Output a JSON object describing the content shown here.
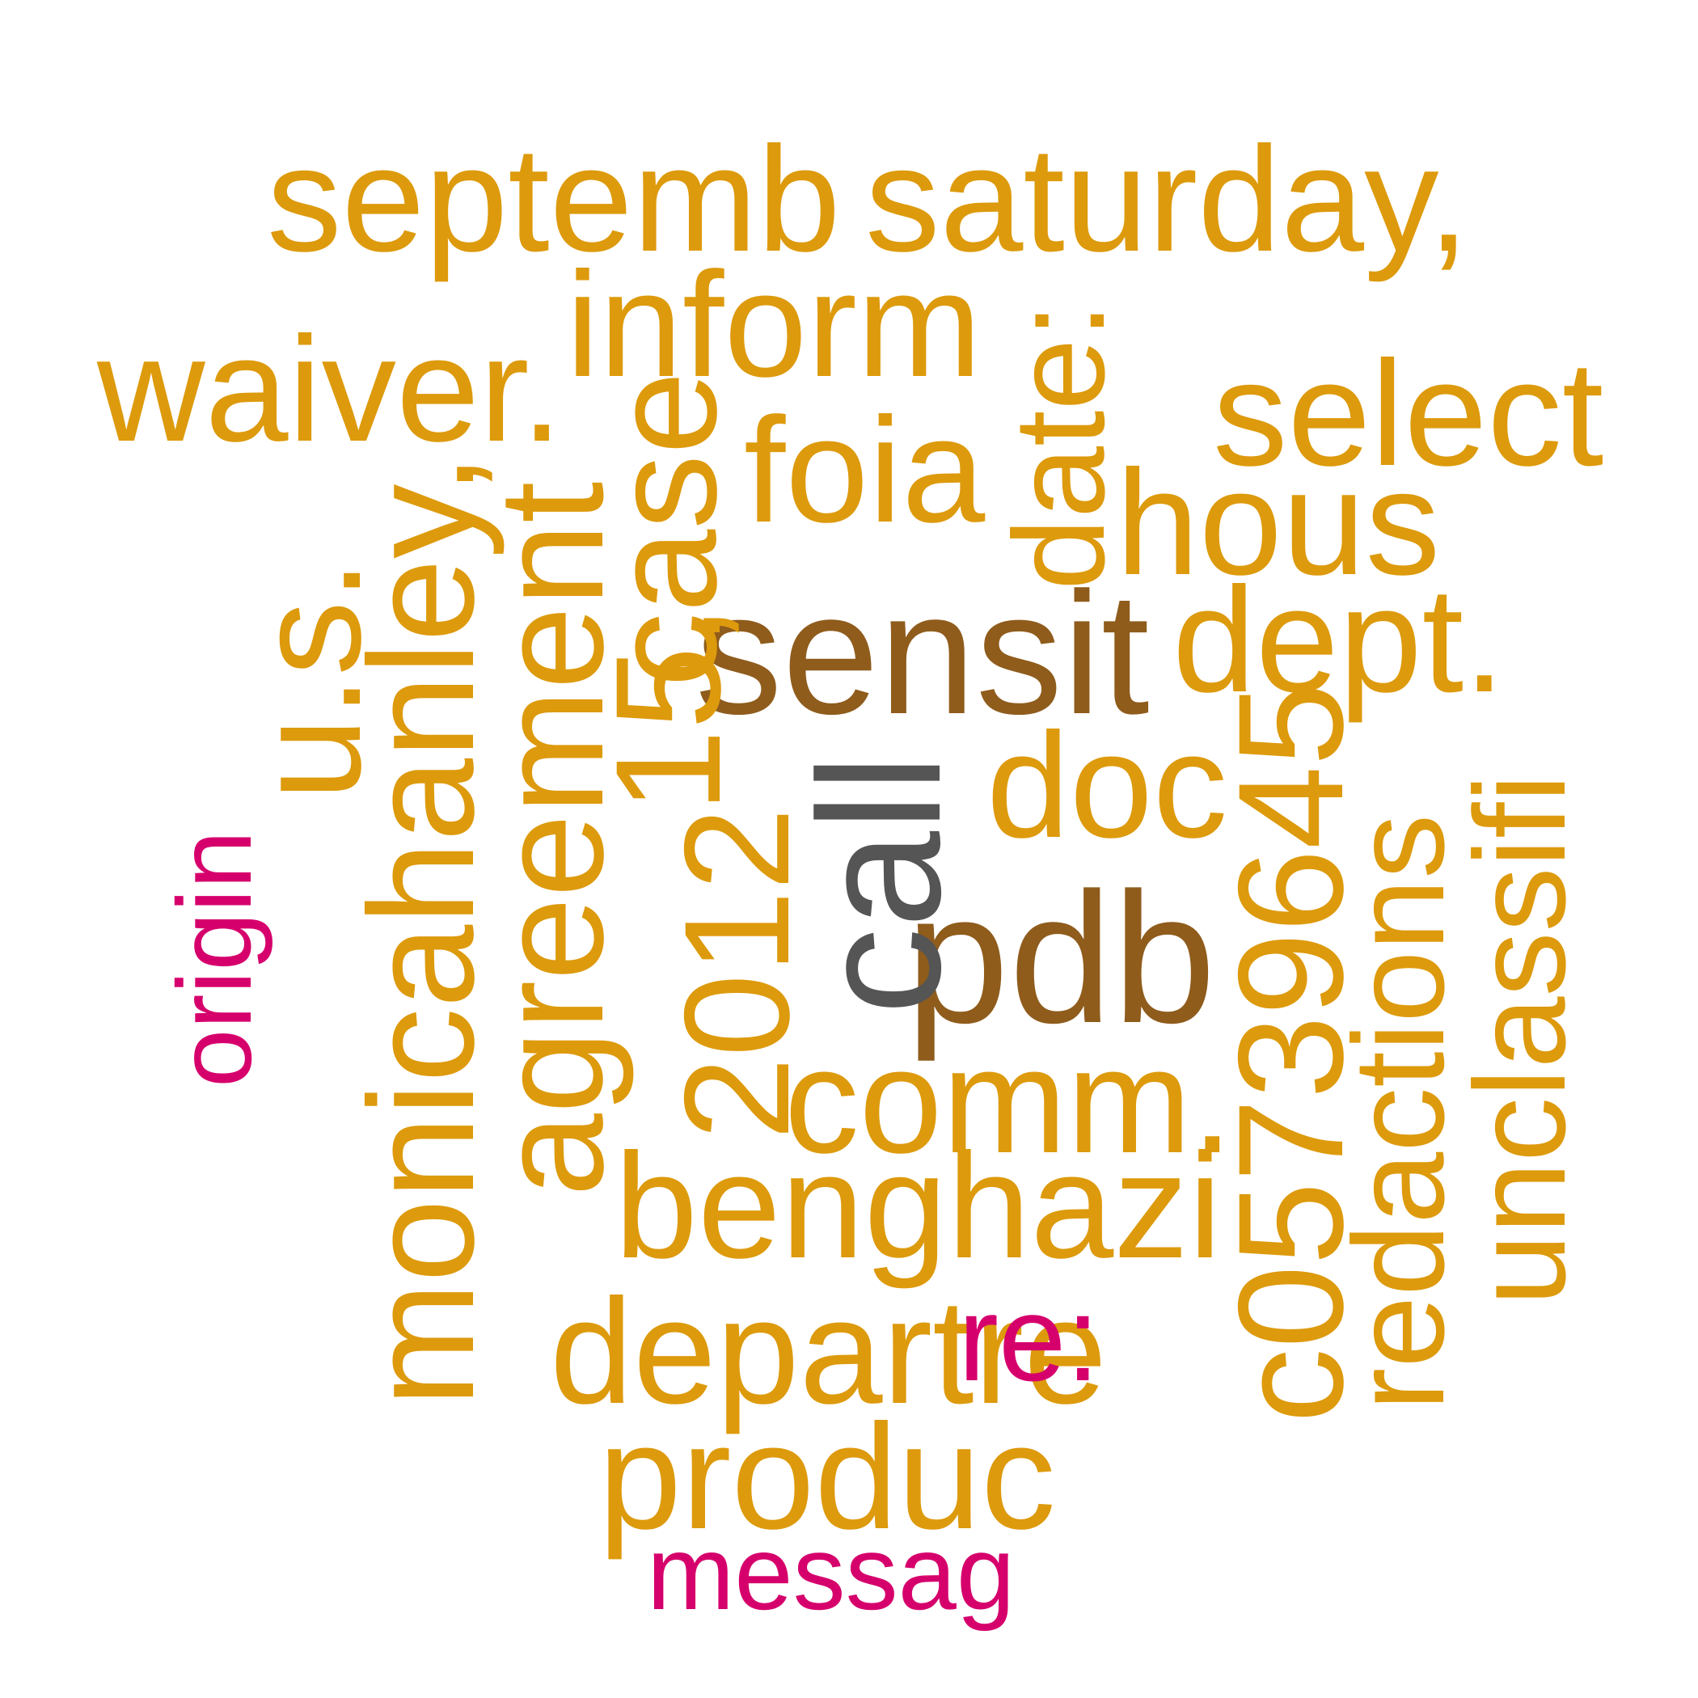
{
  "colors": {
    "background": "#ffffff",
    "gold": "#dd9a0c",
    "brown": "#8f5c1c",
    "dark_gray": "#555555",
    "magenta": "#d6006c"
  },
  "words": [
    {
      "text": "septemb",
      "color": "#dd9a0c"
    },
    {
      "text": "saturday,",
      "color": "#dd9a0c"
    },
    {
      "text": "inform",
      "color": "#dd9a0c"
    },
    {
      "text": "waiver.",
      "color": "#dd9a0c"
    },
    {
      "text": "select",
      "color": "#dd9a0c"
    },
    {
      "text": "foia",
      "color": "#dd9a0c"
    },
    {
      "text": "hous",
      "color": "#dd9a0c"
    },
    {
      "text": "sensit",
      "color": "#8f5c1c"
    },
    {
      "text": "dept.",
      "color": "#dd9a0c"
    },
    {
      "text": "doc",
      "color": "#dd9a0c"
    },
    {
      "text": "pdb",
      "color": "#8f5c1c"
    },
    {
      "text": "comm.",
      "color": "#dd9a0c"
    },
    {
      "text": "benghazi",
      "color": "#dd9a0c"
    },
    {
      "text": "departre",
      "color": "#dd9a0c"
    },
    {
      "text": "re:",
      "color": "#d6006c"
    },
    {
      "text": "produc",
      "color": "#dd9a0c"
    },
    {
      "text": "messag",
      "color": "#d6006c"
    },
    {
      "text": "case",
      "color": "#dd9a0c"
    },
    {
      "text": "date:",
      "color": "#dd9a0c"
    },
    {
      "text": "monicahanley,",
      "color": "#dd9a0c"
    },
    {
      "text": "agreement",
      "color": "#dd9a0c"
    },
    {
      "text": "u.s.",
      "color": "#dd9a0c"
    },
    {
      "text": "origin",
      "color": "#d6006c"
    },
    {
      "text": "15,",
      "color": "#dd9a0c"
    },
    {
      "text": "2012",
      "color": "#dd9a0c"
    },
    {
      "text": "call",
      "color": "#555555"
    },
    {
      "text": "c05739645",
      "color": "#dd9a0c"
    },
    {
      "text": "redactions",
      "color": "#dd9a0c"
    },
    {
      "text": "unclassifi",
      "color": "#dd9a0c"
    }
  ]
}
